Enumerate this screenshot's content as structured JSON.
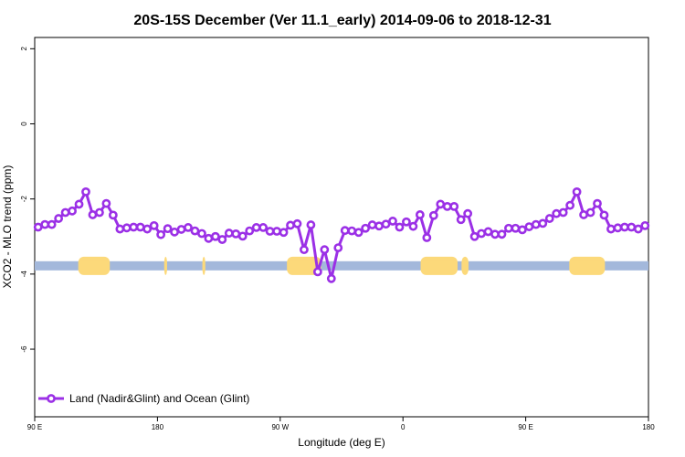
{
  "chart_data": {
    "type": "line",
    "title": "20S-15S December (Ver 11.1_early)   2014-09-06 to 2018-12-31",
    "xlabel": "Longitude (deg E)",
    "ylabel": "XCO2 - MLO trend (ppm)",
    "x_ticks": [
      {
        "v": 90,
        "label": "90 E"
      },
      {
        "v": 180,
        "label": "180"
      },
      {
        "v": 270,
        "label": "90 W"
      },
      {
        "v": 360,
        "label": "0"
      },
      {
        "v": 450,
        "label": "90 E"
      },
      {
        "v": 540,
        "label": "180"
      }
    ],
    "y_ticks": [
      {
        "v": 2,
        "label": "2"
      },
      {
        "v": 0,
        "label": "0"
      },
      {
        "v": -2,
        "label": "-2"
      },
      {
        "v": -4,
        "label": "-4"
      },
      {
        "v": -6,
        "label": "-6"
      }
    ],
    "xlim": [
      90,
      540
    ],
    "ylim": [
      -7.8,
      2.3
    ],
    "grid": false,
    "legend_position": "bottom-left",
    "series": [
      {
        "name": "Land (Nadir&Glint) and Ocean (Glint)",
        "color": "#9b30e6",
        "x": [
          92.5,
          97.5,
          102.5,
          107.5,
          112.5,
          117.5,
          122.5,
          127.5,
          132.5,
          137.5,
          142.5,
          147.5,
          152.5,
          157.5,
          162.5,
          167.5,
          172.5,
          177.5,
          182.5,
          187.5,
          192.5,
          197.5,
          202.5,
          207.5,
          212.5,
          217.5,
          222.5,
          227.5,
          232.5,
          237.5,
          242.5,
          247.5,
          252.5,
          257.5,
          262.5,
          267.5,
          272.5,
          277.5,
          282.5,
          287.5,
          292.5,
          297.5,
          302.5,
          307.5,
          312.5,
          317.5,
          322.5,
          327.5,
          332.5,
          337.5,
          342.5,
          347.5,
          352.5,
          357.5,
          362.5,
          367.5,
          372.5,
          377.5,
          382.5,
          387.5,
          392.5,
          397.5,
          402.5,
          407.5,
          412.5,
          417.5,
          422.5,
          427.5,
          432.5,
          437.5,
          442.5,
          447.5,
          452.5,
          457.5,
          462.5,
          467.5,
          472.5,
          477.5,
          482.5,
          487.5,
          492.5,
          497.5,
          502.5,
          507.5,
          512.5,
          517.5,
          522.5,
          527.5,
          532.5,
          537.5
        ],
        "y": [
          -2.75,
          -2.68,
          -2.68,
          -2.52,
          -2.36,
          -2.32,
          -2.14,
          -1.81,
          -2.42,
          -2.36,
          -2.12,
          -2.43,
          -2.8,
          -2.77,
          -2.75,
          -2.75,
          -2.8,
          -2.71,
          -2.95,
          -2.79,
          -2.88,
          -2.81,
          -2.76,
          -2.85,
          -2.92,
          -3.05,
          -3.0,
          -3.08,
          -2.91,
          -2.93,
          -2.99,
          -2.85,
          -2.76,
          -2.76,
          -2.86,
          -2.86,
          -2.89,
          -2.7,
          -2.66,
          -3.35,
          -2.69,
          -3.94,
          -3.35,
          -4.12,
          -3.3,
          -2.84,
          -2.85,
          -2.89,
          -2.78,
          -2.69,
          -2.72,
          -2.67,
          -2.59,
          -2.75,
          -2.61,
          -2.73,
          -2.42,
          -3.03,
          -2.44,
          -2.14,
          -2.2,
          -2.2,
          -2.55,
          -2.39,
          -3.0,
          -2.92,
          -2.87,
          -2.94,
          -2.94,
          -2.78,
          -2.78,
          -2.82,
          -2.74,
          -2.68,
          -2.65,
          -2.52,
          -2.39,
          -2.36,
          -2.17,
          -1.81,
          -2.42,
          -2.36,
          -2.12,
          -2.43,
          -2.8,
          -2.77,
          -2.75,
          -2.75,
          -2.8,
          -2.71
        ]
      }
    ],
    "surface_strip": {
      "y_center": -3.78,
      "ocean_color": "#a3b8db",
      "land_color": "#fcd97a",
      "land_ranges": [
        [
          122,
          145
        ],
        [
          185,
          187
        ],
        [
          213,
          215
        ],
        [
          275,
          300
        ],
        [
          373,
          400
        ],
        [
          403,
          408
        ],
        [
          482,
          508
        ]
      ]
    }
  }
}
